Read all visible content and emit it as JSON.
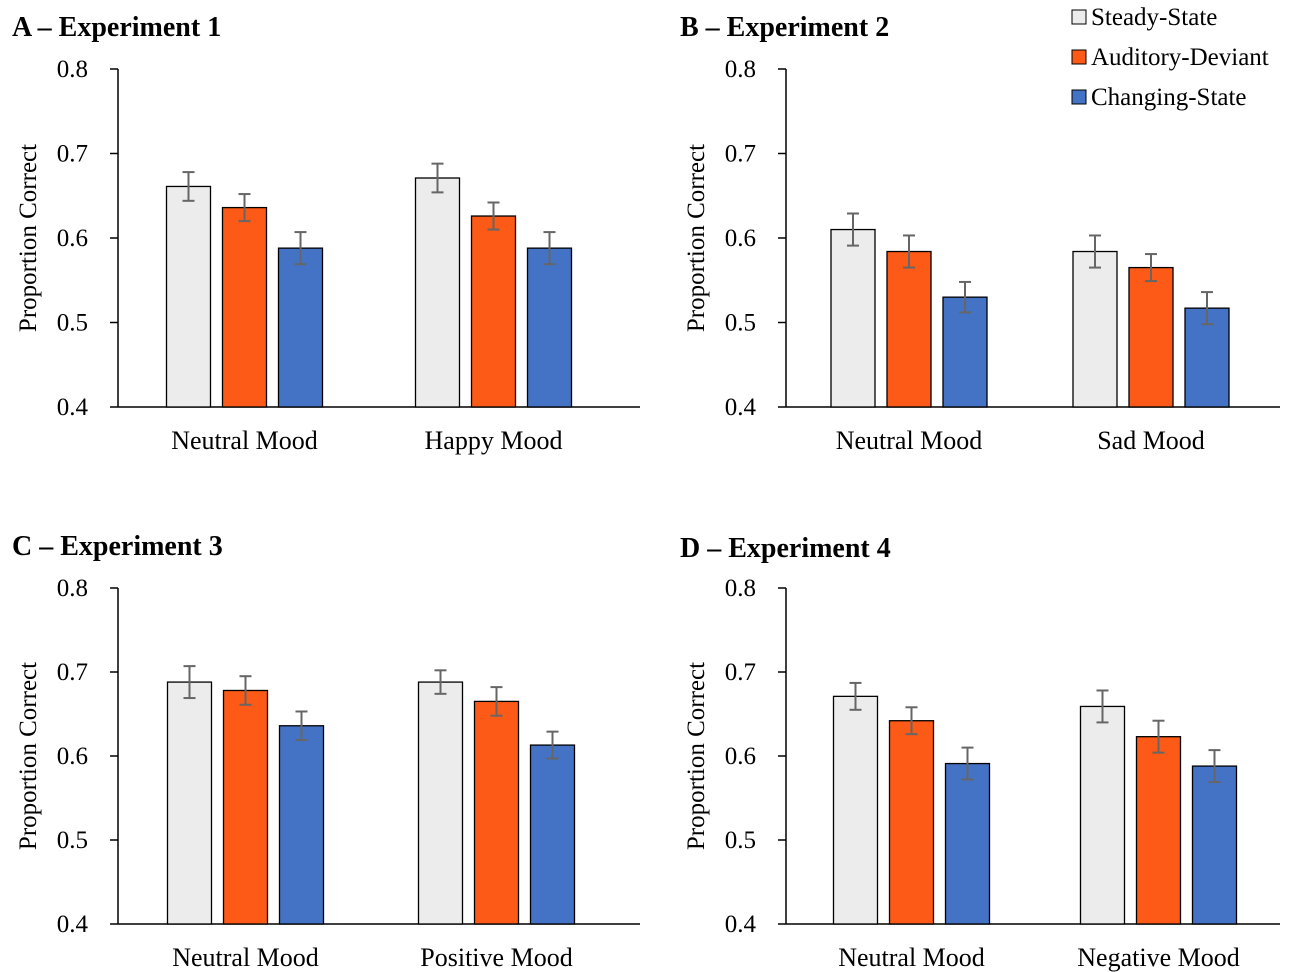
{
  "chart_data": [
    {
      "type": "bar",
      "title": "A – Experiment 1",
      "categories": [
        "Neutral Mood",
        "Happy Mood"
      ],
      "ylabel": "Proportion Correct",
      "ylim": [
        0.4,
        0.8
      ],
      "yticks": [
        "0.8",
        "0.7",
        "0.6",
        "0.5",
        "0.4"
      ],
      "series": [
        {
          "name": "Steady-State",
          "values": [
            0.661,
            0.671
          ],
          "errors": [
            0.017,
            0.017
          ]
        },
        {
          "name": "Auditory-Deviant",
          "values": [
            0.636,
            0.626
          ],
          "errors": [
            0.016,
            0.016
          ]
        },
        {
          "name": "Changing-State",
          "values": [
            0.588,
            0.588
          ],
          "errors": [
            0.019,
            0.019
          ]
        }
      ]
    },
    {
      "type": "bar",
      "title": "B – Experiment 2",
      "categories": [
        "Neutral Mood",
        "Sad Mood"
      ],
      "ylabel": "Proportion Correct",
      "ylim": [
        0.4,
        0.8
      ],
      "yticks": [
        "0.8",
        "0.7",
        "0.6",
        "0.5",
        "0.4"
      ],
      "series": [
        {
          "name": "Steady-State",
          "values": [
            0.61,
            0.584
          ],
          "errors": [
            0.019,
            0.019
          ]
        },
        {
          "name": "Auditory-Deviant",
          "values": [
            0.584,
            0.565
          ],
          "errors": [
            0.019,
            0.016
          ]
        },
        {
          "name": "Changing-State",
          "values": [
            0.53,
            0.517
          ],
          "errors": [
            0.018,
            0.019
          ]
        }
      ]
    },
    {
      "type": "bar",
      "title": "C – Experiment 3",
      "categories": [
        "Neutral Mood",
        "Positive Mood"
      ],
      "ylabel": "Proportion Correct",
      "ylim": [
        0.4,
        0.8
      ],
      "yticks": [
        "0.8",
        "0.7",
        "0.6",
        "0.5",
        "0.4"
      ],
      "series": [
        {
          "name": "Steady-State",
          "values": [
            0.688,
            0.688
          ],
          "errors": [
            0.019,
            0.014
          ]
        },
        {
          "name": "Auditory-Deviant",
          "values": [
            0.678,
            0.665
          ],
          "errors": [
            0.017,
            0.017
          ]
        },
        {
          "name": "Changing-State",
          "values": [
            0.636,
            0.613
          ],
          "errors": [
            0.017,
            0.016
          ]
        }
      ]
    },
    {
      "type": "bar",
      "title": "D – Experiment 4",
      "categories": [
        "Neutral Mood",
        "Negative Mood"
      ],
      "ylabel": "Proportion Correct",
      "ylim": [
        0.4,
        0.8
      ],
      "yticks": [
        "0.8",
        "0.7",
        "0.6",
        "0.5",
        "0.4"
      ],
      "series": [
        {
          "name": "Steady-State",
          "values": [
            0.671,
            0.659
          ],
          "errors": [
            0.016,
            0.019
          ]
        },
        {
          "name": "Auditory-Deviant",
          "values": [
            0.642,
            0.623
          ],
          "errors": [
            0.016,
            0.019
          ]
        },
        {
          "name": "Changing-State",
          "values": [
            0.591,
            0.588
          ],
          "errors": [
            0.019,
            0.019
          ]
        }
      ]
    }
  ],
  "legend": {
    "placement": "top-right",
    "items": [
      {
        "label": "Steady-State",
        "color": "#ececec"
      },
      {
        "label": "Auditory-Deviant",
        "color": "#fc5a16"
      },
      {
        "label": "Changing-State",
        "color": "#4472c4"
      }
    ]
  },
  "colors": {
    "steady_state": "#ececec",
    "auditory_deviant": "#fc5a16",
    "changing_state": "#4472c4",
    "error_bar": "#666666",
    "axis": "#000000"
  }
}
